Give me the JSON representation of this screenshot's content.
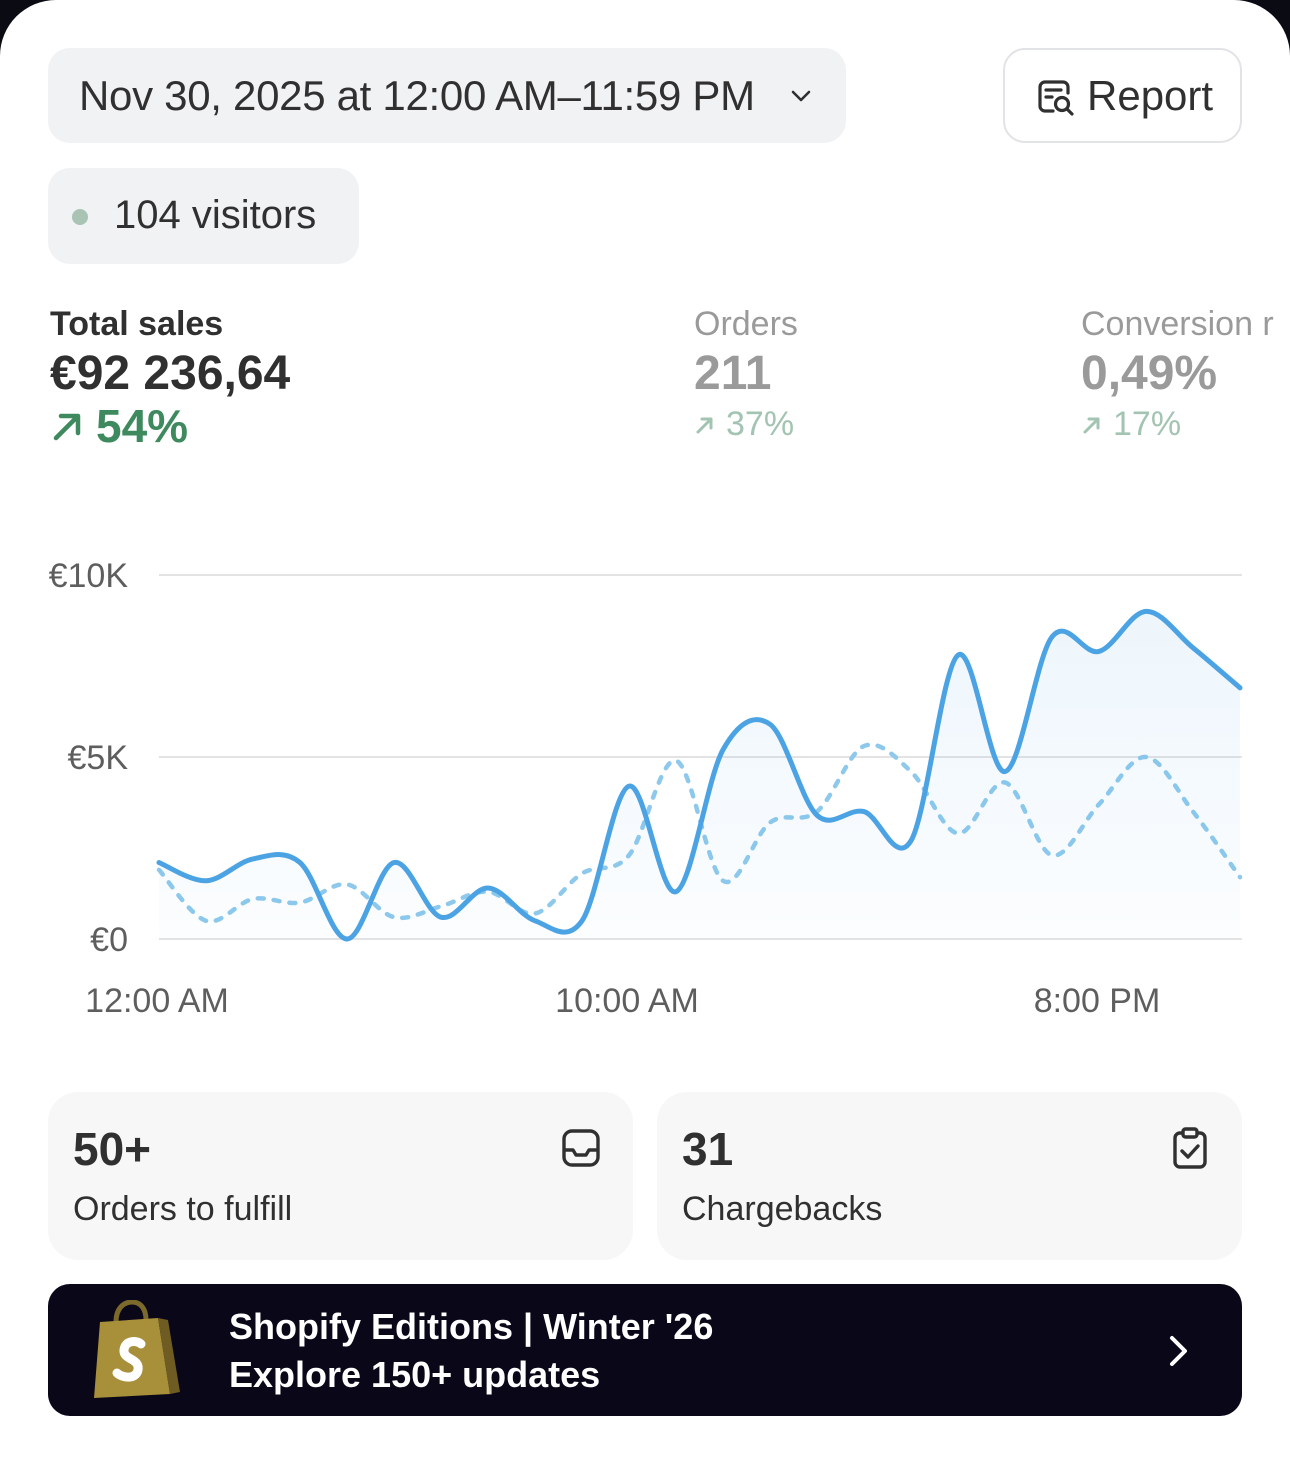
{
  "header": {
    "date_range": "Nov 30, 2025 at 12:00 AM–11:59 PM",
    "report_label": "Report"
  },
  "visitors": {
    "label": "104 visitors",
    "dot_color": "#a9c3b4"
  },
  "metrics": [
    {
      "title": "Total sales",
      "value": "€92 236,64",
      "delta": "54%",
      "trend": "up",
      "active": true
    },
    {
      "title": "Orders",
      "value": "211",
      "delta": "37%",
      "trend": "up",
      "active": false
    },
    {
      "title": "Conversion r",
      "value": "0,49%",
      "delta": "17%",
      "trend": "up",
      "active": false
    }
  ],
  "chart_data": {
    "type": "line",
    "x_tick_labels": [
      "12:00 AM",
      "10:00 AM",
      "8:00 PM"
    ],
    "y_tick_labels": [
      "€10K",
      "€5K",
      "€0"
    ],
    "ylim": [
      0,
      10000
    ],
    "xlim": [
      0,
      23
    ],
    "grid": true,
    "series": [
      {
        "style": "solid",
        "color": "#4ca3e4",
        "x": [
          0,
          1,
          2,
          3,
          4,
          5,
          6,
          7,
          8,
          9,
          10,
          11,
          12,
          13,
          14,
          15,
          16,
          17,
          18,
          19,
          20,
          21,
          22,
          23
        ],
        "values": [
          2100,
          1600,
          2200,
          2100,
          0,
          2100,
          600,
          1400,
          500,
          500,
          4200,
          1300,
          5200,
          5900,
          3400,
          3500,
          2700,
          7800,
          4600,
          8300,
          7900,
          9000,
          8000,
          6900
        ]
      },
      {
        "style": "dashed",
        "color": "#8ec9ec",
        "x": [
          0,
          1,
          2,
          3,
          4,
          5,
          6,
          7,
          8,
          9,
          10,
          11,
          12,
          13,
          14,
          15,
          16,
          17,
          18,
          19,
          20,
          21,
          22,
          23
        ],
        "values": [
          1900,
          500,
          1100,
          1000,
          1500,
          600,
          900,
          1300,
          700,
          1800,
          2300,
          4900,
          1600,
          3200,
          3500,
          5300,
          4600,
          2900,
          4300,
          2300,
          3700,
          5000,
          3500,
          1700
        ]
      }
    ]
  },
  "cards": [
    {
      "value": "50+",
      "label": "Orders to fulfill",
      "icon": "inbox-icon"
    },
    {
      "value": "31",
      "label": "Chargebacks",
      "icon": "clipboard-check-icon"
    }
  ],
  "banner": {
    "title": "Shopify Editions | Winter '26",
    "subtitle": "Explore 150+ updates",
    "background": "#0a0718"
  },
  "colors": {
    "positive": "#3e8a5e",
    "positive_muted": "#a3c4b2",
    "line_primary": "#4ca3e4",
    "line_comparison": "#8ec9ec"
  }
}
